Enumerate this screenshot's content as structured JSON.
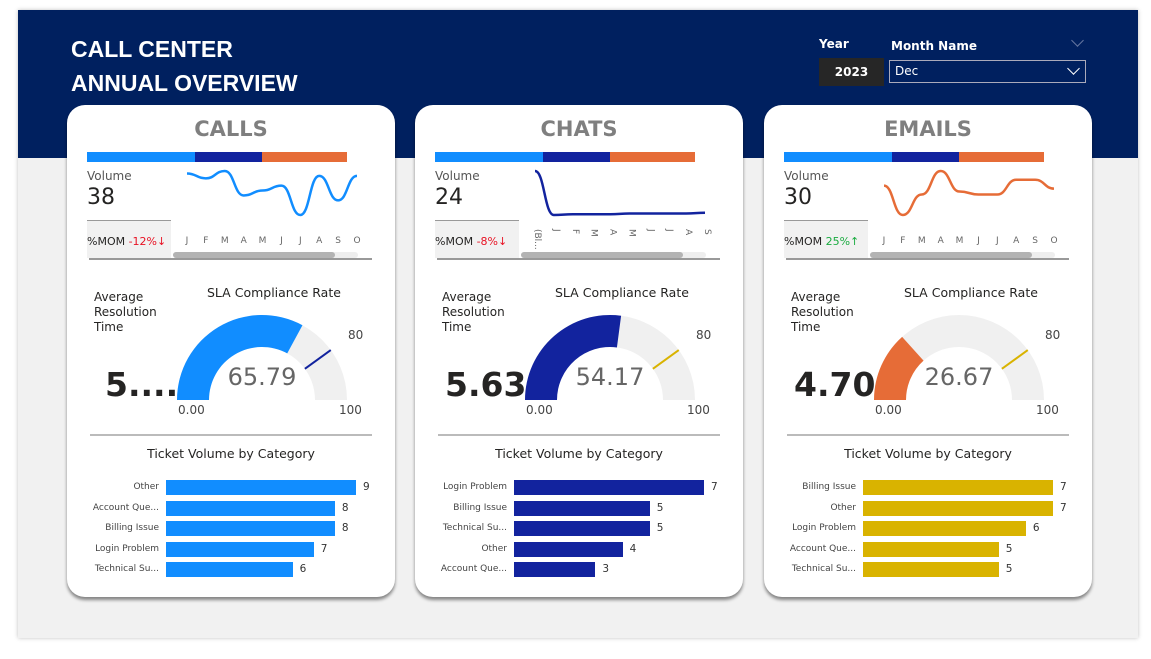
{
  "header": {
    "title_line1": "CALL CENTER",
    "title_line2": "ANNUAL OVERVIEW",
    "year_label": "Year",
    "year_value": "2023",
    "month_label": "Month Name",
    "month_value": "Dec"
  },
  "stripe_colors": [
    "#118dff",
    "#12239e",
    "#e66c37"
  ],
  "cards": [
    {
      "title": "CALLS",
      "color": "#118dff",
      "volume_label": "Volume",
      "volume": "38",
      "mom_label": "%MOM",
      "mom_value": "-12%↓",
      "mom_color": "#e81123",
      "months": [
        "J",
        "F",
        "M",
        "A",
        "M",
        "J",
        "J",
        "A",
        "S",
        "O"
      ],
      "spark": [
        39,
        37,
        40,
        30,
        32,
        34,
        22,
        38,
        28,
        38
      ],
      "rotate_months": false,
      "art_label": [
        "Average",
        "Resolution",
        "Time"
      ],
      "art_value": "5....",
      "sla_title": "SLA Compliance Rate",
      "sla_value": 65.79,
      "sla_display": "65.79",
      "sla_target": 80,
      "target_display": "80",
      "gauge_min": "0.00",
      "gauge_max": "100",
      "target_color": "#12239e",
      "cat_title": "Ticket Volume by Category",
      "categories": [
        {
          "label": "Other",
          "value": 9
        },
        {
          "label": "Account Que...",
          "value": 8
        },
        {
          "label": "Billing Issue",
          "value": 8
        },
        {
          "label": "Login Problem",
          "value": 7
        },
        {
          "label": "Technical Su...",
          "value": 6
        }
      ]
    },
    {
      "title": "CHATS",
      "color": "#12239e",
      "volume_label": "Volume",
      "volume": "24",
      "mom_label": "%MOM",
      "mom_value": "-8%↓",
      "mom_color": "#e81123",
      "months": [
        "(Bl...",
        "J",
        "F",
        "M",
        "A",
        "M",
        "J",
        "J",
        "A",
        "S"
      ],
      "spark": [
        60,
        2,
        3,
        3,
        3,
        4,
        4,
        4,
        4,
        5
      ],
      "rotate_months": true,
      "art_label": [
        "Average",
        "Resolution",
        "Time"
      ],
      "art_value": "5.63",
      "sla_title": "SLA Compliance Rate",
      "sla_value": 54.17,
      "sla_display": "54.17",
      "sla_target": 80,
      "target_display": "80",
      "gauge_min": "0.00",
      "gauge_max": "100",
      "target_color": "#d9b300",
      "cat_title": "Ticket Volume by Category",
      "categories": [
        {
          "label": "Login Problem",
          "value": 7
        },
        {
          "label": "Billing Issue",
          "value": 5
        },
        {
          "label": "Technical Su...",
          "value": 5
        },
        {
          "label": "Other",
          "value": 4
        },
        {
          "label": "Account Que...",
          "value": 3
        }
      ]
    },
    {
      "title": "EMAILS",
      "color": "#e66c37",
      "volume_label": "Volume",
      "volume": "30",
      "mom_label": "%MOM",
      "mom_value": "25%↑",
      "mom_color": "#1aab40",
      "months": [
        "J",
        "F",
        "M",
        "A",
        "M",
        "J",
        "J",
        "A",
        "S",
        "O"
      ],
      "spark": [
        31,
        21,
        28,
        36,
        29,
        28,
        28,
        33,
        33,
        30
      ],
      "rotate_months": false,
      "art_label": [
        "Average",
        "Resolution",
        "Time"
      ],
      "art_value": "4.70",
      "sla_title": "SLA Compliance Rate",
      "sla_value": 26.67,
      "sla_display": "26.67",
      "sla_target": 80,
      "target_display": "80",
      "gauge_min": "0.00",
      "gauge_max": "100",
      "target_color": "#d9b300",
      "cat_title": "Ticket Volume by Category",
      "categories": [
        {
          "label": "Billing Issue",
          "value": 7
        },
        {
          "label": "Other",
          "value": 7
        },
        {
          "label": "Login Problem",
          "value": 6
        },
        {
          "label": "Account Que...",
          "value": 5
        },
        {
          "label": "Technical Su...",
          "value": 5
        }
      ],
      "bar_color": "#d9b300"
    }
  ]
}
